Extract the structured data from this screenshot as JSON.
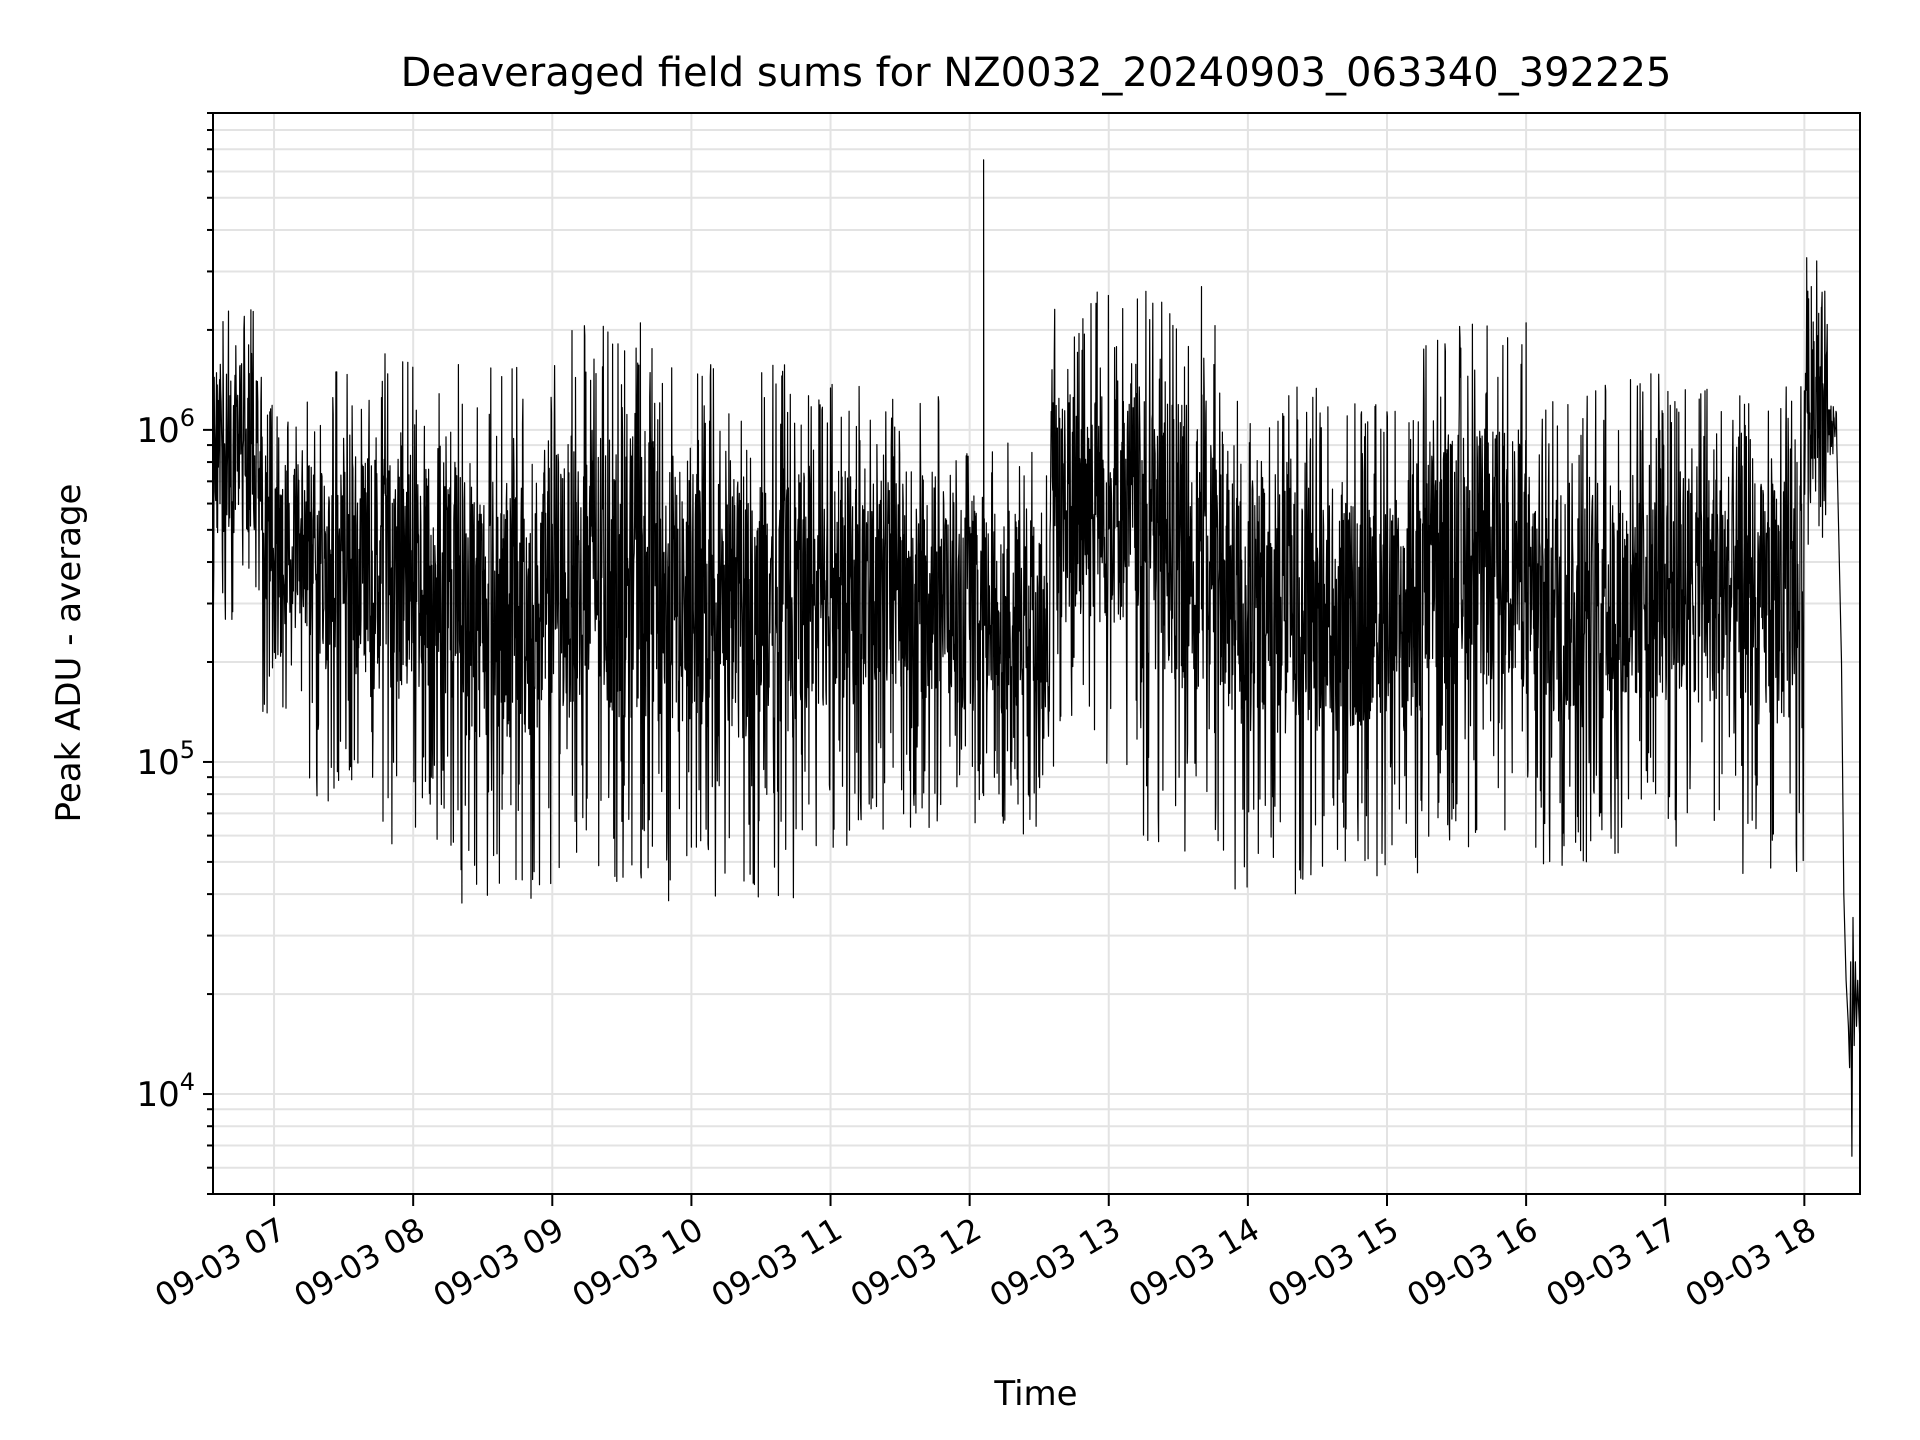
{
  "chart_data": {
    "type": "line",
    "title": "Deaveraged field sums for NZ0032_20240903_063340_392225",
    "xlabel": "Time",
    "ylabel": "Peak ADU - average",
    "yscale": "log",
    "ylim": [
      5000,
      9000000
    ],
    "xlim": [
      "09-03 06:33:40",
      "09-03 18:24:00"
    ],
    "grid": true,
    "line_color": "#000000",
    "x_ticks": [
      {
        "time": "09-03 07:00",
        "label": "09-03 07"
      },
      {
        "time": "09-03 08:00",
        "label": "09-03 08"
      },
      {
        "time": "09-03 09:00",
        "label": "09-03 09"
      },
      {
        "time": "09-03 10:00",
        "label": "09-03 10"
      },
      {
        "time": "09-03 11:00",
        "label": "09-03 11"
      },
      {
        "time": "09-03 12:00",
        "label": "09-03 12"
      },
      {
        "time": "09-03 13:00",
        "label": "09-03 13"
      },
      {
        "time": "09-03 14:00",
        "label": "09-03 14"
      },
      {
        "time": "09-03 15:00",
        "label": "09-03 15"
      },
      {
        "time": "09-03 16:00",
        "label": "09-03 16"
      },
      {
        "time": "09-03 17:00",
        "label": "09-03 17"
      },
      {
        "time": "09-03 18:00",
        "label": "09-03 18"
      }
    ],
    "y_ticks": [
      {
        "value": 10000,
        "base": "10",
        "exp": "4"
      },
      {
        "value": 100000,
        "base": "10",
        "exp": "5"
      },
      {
        "value": 1000000,
        "base": "10",
        "exp": "6"
      }
    ],
    "segments": [
      {
        "start": "09-03 06:33:40",
        "end": "09-03 06:55",
        "low": 250000,
        "high": 2300000
      },
      {
        "start": "09-03 06:55",
        "end": "09-03 07:15",
        "low": 120000,
        "high": 1300000
      },
      {
        "start": "09-03 07:15",
        "end": "09-03 07:40",
        "low": 75000,
        "high": 1500000
      },
      {
        "start": "09-03 07:40",
        "end": "09-03 08:20",
        "low": 55000,
        "high": 1700000
      },
      {
        "start": "09-03 08:20",
        "end": "09-03 09:00",
        "low": 37000,
        "high": 1600000
      },
      {
        "start": "09-03 09:00",
        "end": "09-03 09:45",
        "low": 42000,
        "high": 2100000
      },
      {
        "start": "09-03 09:45",
        "end": "09-03 10:45",
        "low": 38000,
        "high": 1600000
      },
      {
        "start": "09-03 10:45",
        "end": "09-03 11:15",
        "low": 55000,
        "high": 1400000
      },
      {
        "start": "09-03 11:15",
        "end": "09-03 11:55",
        "low": 60000,
        "high": 1300000
      },
      {
        "start": "09-03 11:55",
        "end": "09-03 12:35",
        "low": 60000,
        "high": 1000000
      },
      {
        "start": "09-03 12:35",
        "end": "09-03 13:15",
        "low": 95000,
        "high": 2600000
      },
      {
        "start": "09-03 13:15",
        "end": "09-03 13:50",
        "low": 50000,
        "high": 2700000
      },
      {
        "start": "09-03 13:50",
        "end": "09-03 14:30",
        "low": 40000,
        "high": 1400000
      },
      {
        "start": "09-03 14:30",
        "end": "09-03 15:15",
        "low": 45000,
        "high": 1200000
      },
      {
        "start": "09-03 15:15",
        "end": "09-03 16:00",
        "low": 55000,
        "high": 2100000
      },
      {
        "start": "09-03 16:00",
        "end": "09-03 16:45",
        "low": 45000,
        "high": 1400000
      },
      {
        "start": "09-03 16:45",
        "end": "09-03 17:30",
        "low": 55000,
        "high": 1500000
      },
      {
        "start": "09-03 17:30",
        "end": "09-03 18:00",
        "low": 45000,
        "high": 1400000
      },
      {
        "start": "09-03 18:00",
        "end": "09-03 18:10",
        "low": 450000,
        "high": 3300000
      },
      {
        "start": "09-03 18:10",
        "end": "09-03 18:14",
        "low": 800000,
        "high": 1300000
      }
    ],
    "spikes": [
      {
        "time": "09-03 06:50",
        "value": 2300000
      },
      {
        "time": "09-03 09:38",
        "value": 2100000
      },
      {
        "time": "09-03 12:06",
        "value": 6500000
      },
      {
        "time": "09-03 12:55",
        "value": 2600000
      },
      {
        "time": "09-03 13:40",
        "value": 2700000
      },
      {
        "time": "09-03 16:00",
        "value": 2100000
      },
      {
        "time": "09-03 18:01",
        "value": 3300000
      },
      {
        "time": "09-03 18:03",
        "value": 2700000
      }
    ],
    "drop": [
      {
        "time": "09-03 18:14",
        "value": 900000
      },
      {
        "time": "09-03 18:16",
        "value": 200000
      },
      {
        "time": "09-03 18:17",
        "value": 40000
      },
      {
        "time": "09-03 18:18",
        "value": 22000
      },
      {
        "time": "09-03 18:19",
        "value": 16000
      },
      {
        "time": "09-03 18:19:30",
        "value": 12000
      },
      {
        "time": "09-03 18:20",
        "value": 25000
      },
      {
        "time": "09-03 18:20:30",
        "value": 6500
      },
      {
        "time": "09-03 18:21",
        "value": 34000
      },
      {
        "time": "09-03 18:21:30",
        "value": 14000
      },
      {
        "time": "09-03 18:22",
        "value": 25000
      },
      {
        "time": "09-03 18:22:30",
        "value": 16000
      },
      {
        "time": "09-03 18:23",
        "value": 22000
      },
      {
        "time": "09-03 18:24",
        "value": 14000
      }
    ]
  }
}
